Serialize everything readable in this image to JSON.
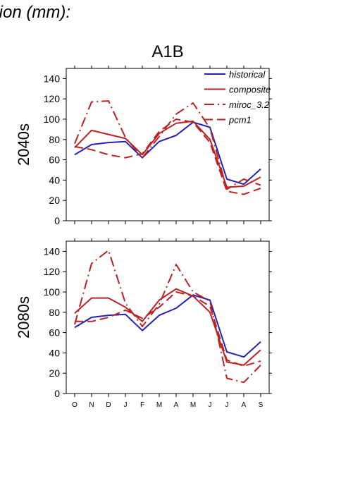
{
  "page": {
    "title": "tion (mm):"
  },
  "chart_data": {
    "type": "line",
    "title": "A1B",
    "categories": [
      "O",
      "N",
      "D",
      "J",
      "F",
      "M",
      "A",
      "M",
      "J",
      "J",
      "A",
      "S"
    ],
    "yticks": [
      0,
      20,
      40,
      60,
      80,
      100,
      120,
      140
    ],
    "ylim": [
      0,
      150
    ],
    "legend_placement": "top-right",
    "legend": [
      {
        "name": "historical",
        "color": "#2222bb",
        "dash": "solid"
      },
      {
        "name": "composite",
        "color": "#bb2222",
        "dash": "solid"
      },
      {
        "name": "miroc_3.2",
        "color": "#bb2222",
        "dash": "dashdot"
      },
      {
        "name": "pcm1",
        "color": "#bb2222",
        "dash": "dashed"
      }
    ],
    "panels": [
      {
        "label": "2040s",
        "series": [
          {
            "name": "historical",
            "values": [
              65,
              75,
              77,
              78,
              62,
              78,
              84,
              97,
              92,
              41,
              36,
              51
            ]
          },
          {
            "name": "composite",
            "values": [
              72,
              89,
              85,
              81,
              65,
              86,
              96,
              98,
              80,
              33,
              34,
              43
            ]
          },
          {
            "name": "miroc_3.2",
            "values": [
              76,
              117,
              118,
              82,
              62,
              83,
              105,
              116,
              91,
              31,
              41,
              35
            ]
          },
          {
            "name": "pcm1",
            "values": [
              73,
              70,
              65,
              62,
              66,
              88,
              100,
              97,
              77,
              29,
              26,
              32
            ]
          }
        ]
      },
      {
        "label": "2080s",
        "series": [
          {
            "name": "historical",
            "values": [
              65,
              75,
              77,
              78,
              62,
              77,
              84,
              97,
              92,
              41,
              36,
              51
            ]
          },
          {
            "name": "composite",
            "values": [
              79,
              94,
              94,
              85,
              71,
              92,
              103,
              96,
              80,
              31,
              28,
              43
            ]
          },
          {
            "name": "miroc_3.2",
            "values": [
              68,
              128,
              141,
              89,
              66,
              88,
              127,
              100,
              91,
              15,
              11,
              28
            ]
          },
          {
            "name": "pcm1",
            "values": [
              71,
              71,
              75,
              82,
              74,
              85,
              100,
              96,
              86,
              33,
              27,
              32
            ]
          }
        ]
      }
    ]
  }
}
